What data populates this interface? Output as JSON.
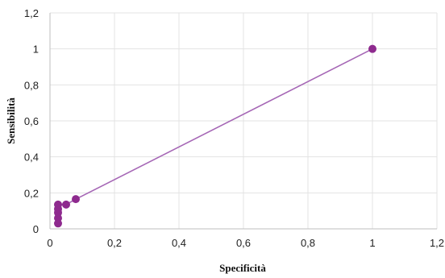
{
  "chart_data": {
    "type": "line",
    "title": "",
    "xlabel": "Specificità",
    "ylabel": "Sensibilità",
    "xlim": [
      0,
      1.2
    ],
    "ylim": [
      0,
      1.2
    ],
    "x_ticks": [
      "0",
      "0,2",
      "0,4",
      "0,6",
      "0,8",
      "1",
      "1,2"
    ],
    "y_ticks": [
      "0",
      "0,2",
      "0,4",
      "0,6",
      "0,8",
      "1",
      "1,2"
    ],
    "grid": true,
    "legend": "none",
    "series": [
      {
        "color": "#8e2a8e",
        "line_color": "#a566b5",
        "points": [
          {
            "x": 0.025,
            "y": 0.03
          },
          {
            "x": 0.025,
            "y": 0.06
          },
          {
            "x": 0.025,
            "y": 0.09
          },
          {
            "x": 0.025,
            "y": 0.11
          },
          {
            "x": 0.025,
            "y": 0.135
          },
          {
            "x": 0.05,
            "y": 0.135
          },
          {
            "x": 0.08,
            "y": 0.165
          },
          {
            "x": 1.0,
            "y": 1.0
          }
        ]
      }
    ]
  }
}
